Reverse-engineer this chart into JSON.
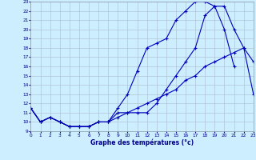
{
  "title": "Graphe des températures (°c)",
  "background_color": "#cceeff",
  "grid_color": "#aabbcc",
  "line_color": "#0000bb",
  "hours": [
    0,
    1,
    2,
    3,
    4,
    5,
    6,
    7,
    8,
    9,
    10,
    11,
    12,
    13,
    14,
    15,
    16,
    17,
    18,
    19,
    20,
    21,
    22,
    23
  ],
  "line1": [
    11.5,
    10.0,
    10.5,
    10.0,
    9.5,
    9.5,
    9.5,
    10.0,
    10.0,
    11.5,
    13.0,
    15.5,
    18.0,
    18.5,
    19.0,
    21.0,
    22.0,
    23.0,
    23.0,
    22.5,
    20.0,
    16.0,
    null,
    null
  ],
  "line2": [
    11.5,
    10.0,
    10.5,
    10.0,
    9.5,
    9.5,
    9.5,
    10.0,
    10.0,
    11.0,
    11.0,
    11.0,
    11.0,
    12.0,
    13.5,
    15.0,
    16.5,
    18.0,
    21.5,
    22.5,
    22.5,
    20.0,
    18.0,
    16.5
  ],
  "line3": [
    11.5,
    10.0,
    10.5,
    10.0,
    9.5,
    9.5,
    9.5,
    10.0,
    10.0,
    10.5,
    11.0,
    11.5,
    12.0,
    12.5,
    13.0,
    13.5,
    14.5,
    15.0,
    16.0,
    16.5,
    17.0,
    17.5,
    18.0,
    13.0
  ],
  "xlim": [
    0,
    23
  ],
  "ylim": [
    9,
    23
  ],
  "yticks": [
    9,
    10,
    11,
    12,
    13,
    14,
    15,
    16,
    17,
    18,
    19,
    20,
    21,
    22,
    23
  ],
  "xticks": [
    0,
    1,
    2,
    3,
    4,
    5,
    6,
    7,
    8,
    9,
    10,
    11,
    12,
    13,
    14,
    15,
    16,
    17,
    18,
    19,
    20,
    21,
    22,
    23
  ]
}
